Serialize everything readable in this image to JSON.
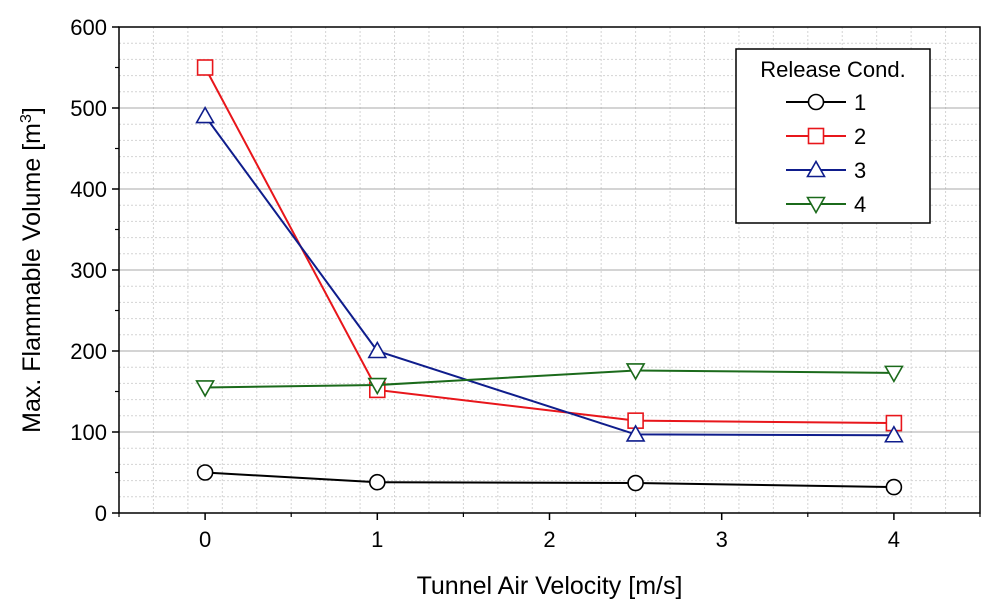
{
  "chart_data": {
    "type": "line",
    "title": "",
    "xlabel": "Tunnel Air Velocity [m/s]",
    "ylabel": "Max. Flammable Volume [m",
    "ylabel_sup": "3",
    "ylabel_end": "]",
    "xlim": [
      -0.5,
      4.5
    ],
    "ylim": [
      0,
      600
    ],
    "xticks": [
      0,
      1,
      2,
      3,
      4
    ],
    "xtick_labels": [
      "0",
      "1",
      "2",
      "3",
      "4"
    ],
    "yticks": [
      0,
      100,
      200,
      300,
      400,
      500,
      600
    ],
    "ytick_labels": [
      "0",
      "100",
      "200",
      "300",
      "400",
      "500",
      "600"
    ],
    "grid": true,
    "x": [
      0,
      1,
      2.5,
      4
    ],
    "legend": {
      "title": "Release Cond.",
      "placement": "top-right"
    },
    "series": [
      {
        "name": "1",
        "marker": "circle",
        "color": "#000000",
        "values": [
          50,
          38,
          37,
          32
        ]
      },
      {
        "name": "2",
        "marker": "square",
        "color": "#e8161b",
        "values": [
          550,
          152,
          114,
          111
        ]
      },
      {
        "name": "3",
        "marker": "triangle-up",
        "color": "#0f1d8c",
        "values": [
          490,
          200,
          97,
          96
        ]
      },
      {
        "name": "4",
        "marker": "triangle-down",
        "color": "#1b6a1b",
        "values": [
          155,
          158,
          176,
          173
        ]
      }
    ]
  }
}
